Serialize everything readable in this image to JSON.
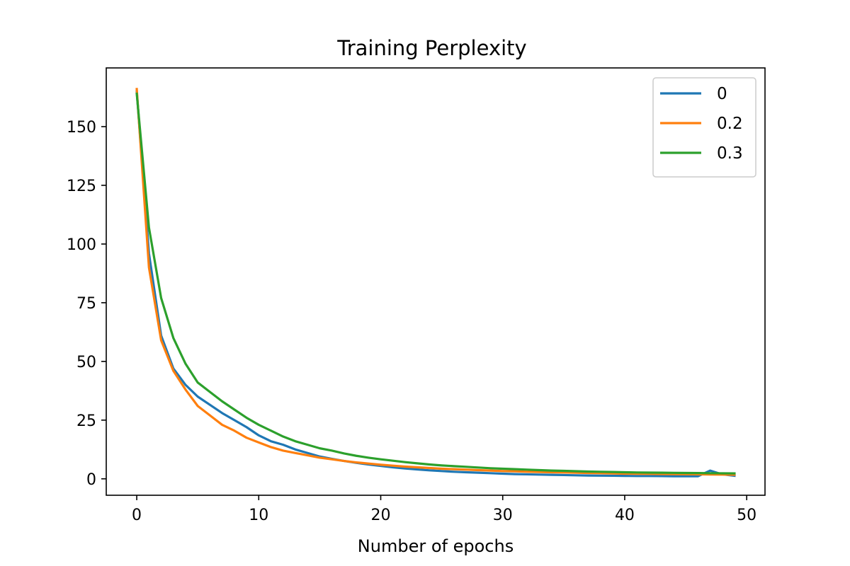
{
  "chart_data": {
    "type": "line",
    "title": "Training Perplexity",
    "xlabel": "Number of epochs",
    "ylabel": "",
    "xlim": [
      -2.5,
      51.5
    ],
    "ylim": [
      -7,
      175
    ],
    "x_ticks": [
      0,
      10,
      20,
      30,
      40,
      50
    ],
    "y_ticks": [
      0,
      25,
      50,
      75,
      100,
      125,
      150
    ],
    "grid": false,
    "legend_position": "top-right",
    "x": [
      0,
      1,
      2,
      3,
      4,
      5,
      6,
      7,
      8,
      9,
      10,
      11,
      12,
      13,
      14,
      15,
      16,
      17,
      18,
      19,
      20,
      21,
      22,
      23,
      24,
      25,
      26,
      27,
      28,
      29,
      30,
      31,
      32,
      33,
      34,
      35,
      36,
      37,
      38,
      39,
      40,
      41,
      42,
      43,
      44,
      45,
      46,
      47,
      48,
      49
    ],
    "series": [
      {
        "name": "0",
        "color": "#1f77b4",
        "values": [
          165,
          96,
          61,
          47,
          40,
          35,
          31.5,
          28,
          25,
          22,
          18.5,
          16,
          14.5,
          12.5,
          11,
          9.5,
          8.5,
          7.6,
          6.8,
          6.1,
          5.5,
          4.9,
          4.4,
          4.0,
          3.6,
          3.3,
          3.0,
          2.8,
          2.6,
          2.4,
          2.2,
          2.0,
          1.9,
          1.8,
          1.7,
          1.6,
          1.5,
          1.4,
          1.35,
          1.3,
          1.25,
          1.2,
          1.2,
          1.15,
          1.1,
          1.1,
          1.1,
          3.5,
          1.9,
          1.3
        ]
      },
      {
        "name": "0.2",
        "color": "#ff7f0e",
        "values": [
          166,
          90,
          59,
          46,
          38,
          31,
          27,
          23,
          20.5,
          17.5,
          15.5,
          13.5,
          12,
          11,
          10,
          9,
          8.3,
          7.6,
          7.0,
          6.5,
          6.0,
          5.6,
          5.2,
          4.9,
          4.6,
          4.3,
          4.1,
          3.9,
          3.7,
          3.5,
          3.3,
          3.2,
          3.0,
          2.9,
          2.8,
          2.7,
          2.6,
          2.5,
          2.4,
          2.3,
          2.2,
          2.15,
          2.1,
          2.05,
          2.0,
          1.95,
          1.9,
          1.85,
          1.8,
          1.75
        ]
      },
      {
        "name": "0.3",
        "color": "#2ca02c",
        "values": [
          164,
          107,
          77,
          60,
          49,
          41,
          37,
          33,
          29.5,
          26,
          23,
          20.5,
          18,
          16,
          14.5,
          13,
          12,
          10.8,
          9.8,
          9.0,
          8.3,
          7.7,
          7.1,
          6.6,
          6.1,
          5.7,
          5.4,
          5.1,
          4.8,
          4.5,
          4.3,
          4.1,
          3.9,
          3.7,
          3.5,
          3.4,
          3.25,
          3.1,
          3.0,
          2.9,
          2.8,
          2.7,
          2.65,
          2.6,
          2.55,
          2.5,
          2.45,
          2.4,
          2.35,
          2.3
        ]
      }
    ]
  }
}
